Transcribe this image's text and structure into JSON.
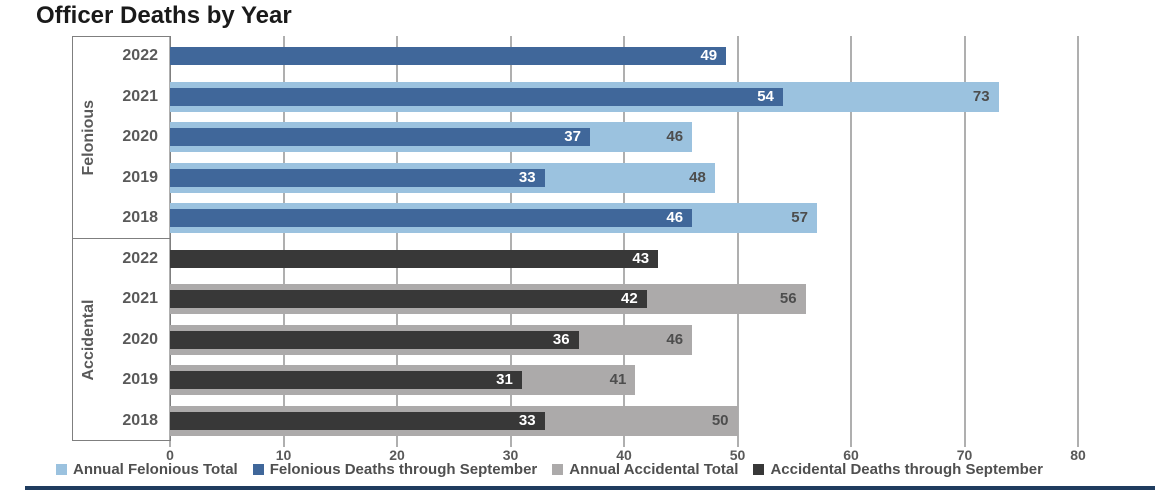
{
  "title": "Officer Deaths by Year",
  "chart_data": {
    "type": "bar",
    "orientation": "horizontal",
    "title": "Officer Deaths by Year",
    "grid": true,
    "x_axis": {
      "ticks": [
        0,
        10,
        20,
        30,
        40,
        50,
        60,
        70,
        80
      ],
      "range": [
        0,
        80
      ]
    },
    "groups": [
      {
        "label": "Felonious",
        "total_color": "#9BC2DF",
        "through_color": "#40679A",
        "rows": [
          {
            "year": "2022",
            "annual_total": null,
            "through_september": 49
          },
          {
            "year": "2021",
            "annual_total": 73,
            "through_september": 54
          },
          {
            "year": "2020",
            "annual_total": 46,
            "through_september": 37
          },
          {
            "year": "2019",
            "annual_total": 48,
            "through_september": 33
          },
          {
            "year": "2018",
            "annual_total": 57,
            "through_september": 46
          }
        ]
      },
      {
        "label": "Accidental",
        "total_color": "#ACAAAA",
        "through_color": "#383838",
        "rows": [
          {
            "year": "2022",
            "annual_total": null,
            "through_september": 43
          },
          {
            "year": "2021",
            "annual_total": 56,
            "through_september": 42
          },
          {
            "year": "2020",
            "annual_total": 46,
            "through_september": 36
          },
          {
            "year": "2019",
            "annual_total": 41,
            "through_september": 31
          },
          {
            "year": "2018",
            "annual_total": 50,
            "through_september": 33
          }
        ]
      }
    ],
    "legend": [
      {
        "label": "Annual Felonious Total",
        "color": "#9BC2DF"
      },
      {
        "label": "Felonious Deaths through September",
        "color": "#40679A"
      },
      {
        "label": "Annual Accidental Total",
        "color": "#ACAAAA"
      },
      {
        "label": "Accidental Deaths through September",
        "color": "#383838"
      }
    ],
    "legend_position": "bottom"
  },
  "colors": {
    "title_text": "#1A1A1A",
    "axis_text": "#595959",
    "gridline": "#AFAFAF",
    "box_border": "#7F7F7F",
    "value_text_on_light": "#4D4D4D",
    "value_text_on_dark": "#FFFFFF",
    "legend_text": "#4F4F4F",
    "bottom_rule": "#1F3C5F"
  }
}
